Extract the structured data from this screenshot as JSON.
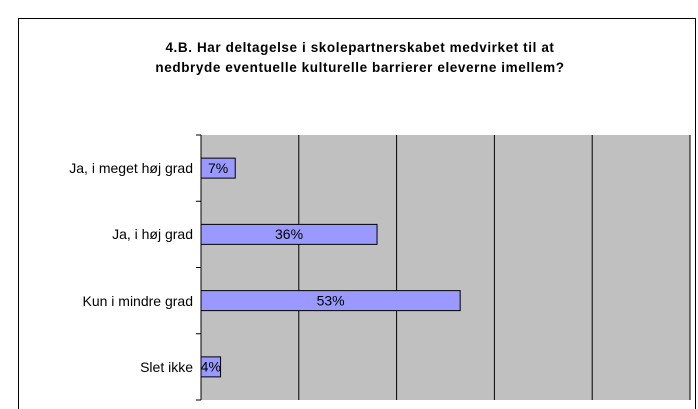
{
  "chart_data": {
    "type": "hbar",
    "title": "4.B. Har deltagelse i skolepartnerskabet medvirket til at nedbryde eventuelle kulturelle barrierer eleverne imellem?",
    "categories": [
      "Ja, i meget høj grad",
      "Ja, i høj grad",
      "Kun i mindre grad",
      "Slet ikke"
    ],
    "values": [
      7,
      36,
      53,
      4
    ],
    "value_labels": [
      "7%",
      "36%",
      "53%",
      "4%"
    ],
    "color": "#9999ff",
    "xlim": [
      0,
      100
    ],
    "xticks": [
      0,
      20,
      40,
      60,
      80,
      100
    ],
    "grid": true
  }
}
